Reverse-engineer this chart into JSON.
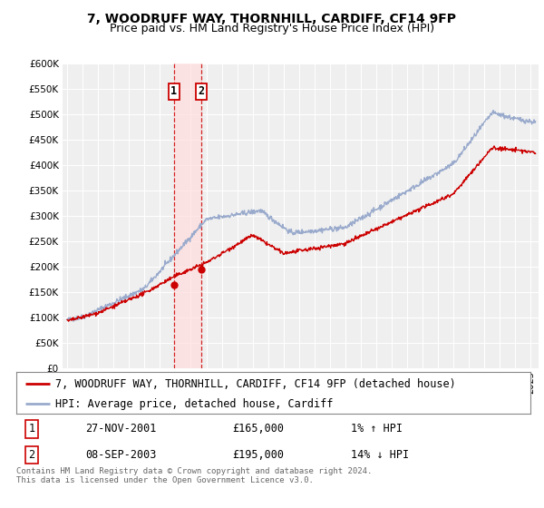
{
  "title": "7, WOODRUFF WAY, THORNHILL, CARDIFF, CF14 9FP",
  "subtitle": "Price paid vs. HM Land Registry's House Price Index (HPI)",
  "ylim": [
    0,
    600000
  ],
  "yticks": [
    0,
    50000,
    100000,
    150000,
    200000,
    250000,
    300000,
    350000,
    400000,
    450000,
    500000,
    550000,
    600000
  ],
  "xlim_start": 1994.7,
  "xlim_end": 2025.5,
  "background_color": "#ffffff",
  "plot_bg_color": "#efefef",
  "grid_color": "#ffffff",
  "hpi_color": "#99aacc",
  "price_color": "#cc0000",
  "sale1_date_num": 2001.91,
  "sale1_price": 165000,
  "sale1_label": "1",
  "sale2_date_num": 2003.69,
  "sale2_price": 195000,
  "sale2_label": "2",
  "shade_color": "#ffdddd",
  "vline_color": "#cc0000",
  "legend_entry1": "7, WOODRUFF WAY, THORNHILL, CARDIFF, CF14 9FP (detached house)",
  "legend_entry2": "HPI: Average price, detached house, Cardiff",
  "table_row1_num": "1",
  "table_row1_date": "27-NOV-2001",
  "table_row1_price": "£165,000",
  "table_row1_hpi": "1% ↑ HPI",
  "table_row2_num": "2",
  "table_row2_date": "08-SEP-2003",
  "table_row2_price": "£195,000",
  "table_row2_hpi": "14% ↓ HPI",
  "footer1": "Contains HM Land Registry data © Crown copyright and database right 2024.",
  "footer2": "This data is licensed under the Open Government Licence v3.0.",
  "title_fontsize": 10,
  "subtitle_fontsize": 9,
  "tick_fontsize": 7.5,
  "legend_fontsize": 8.5
}
